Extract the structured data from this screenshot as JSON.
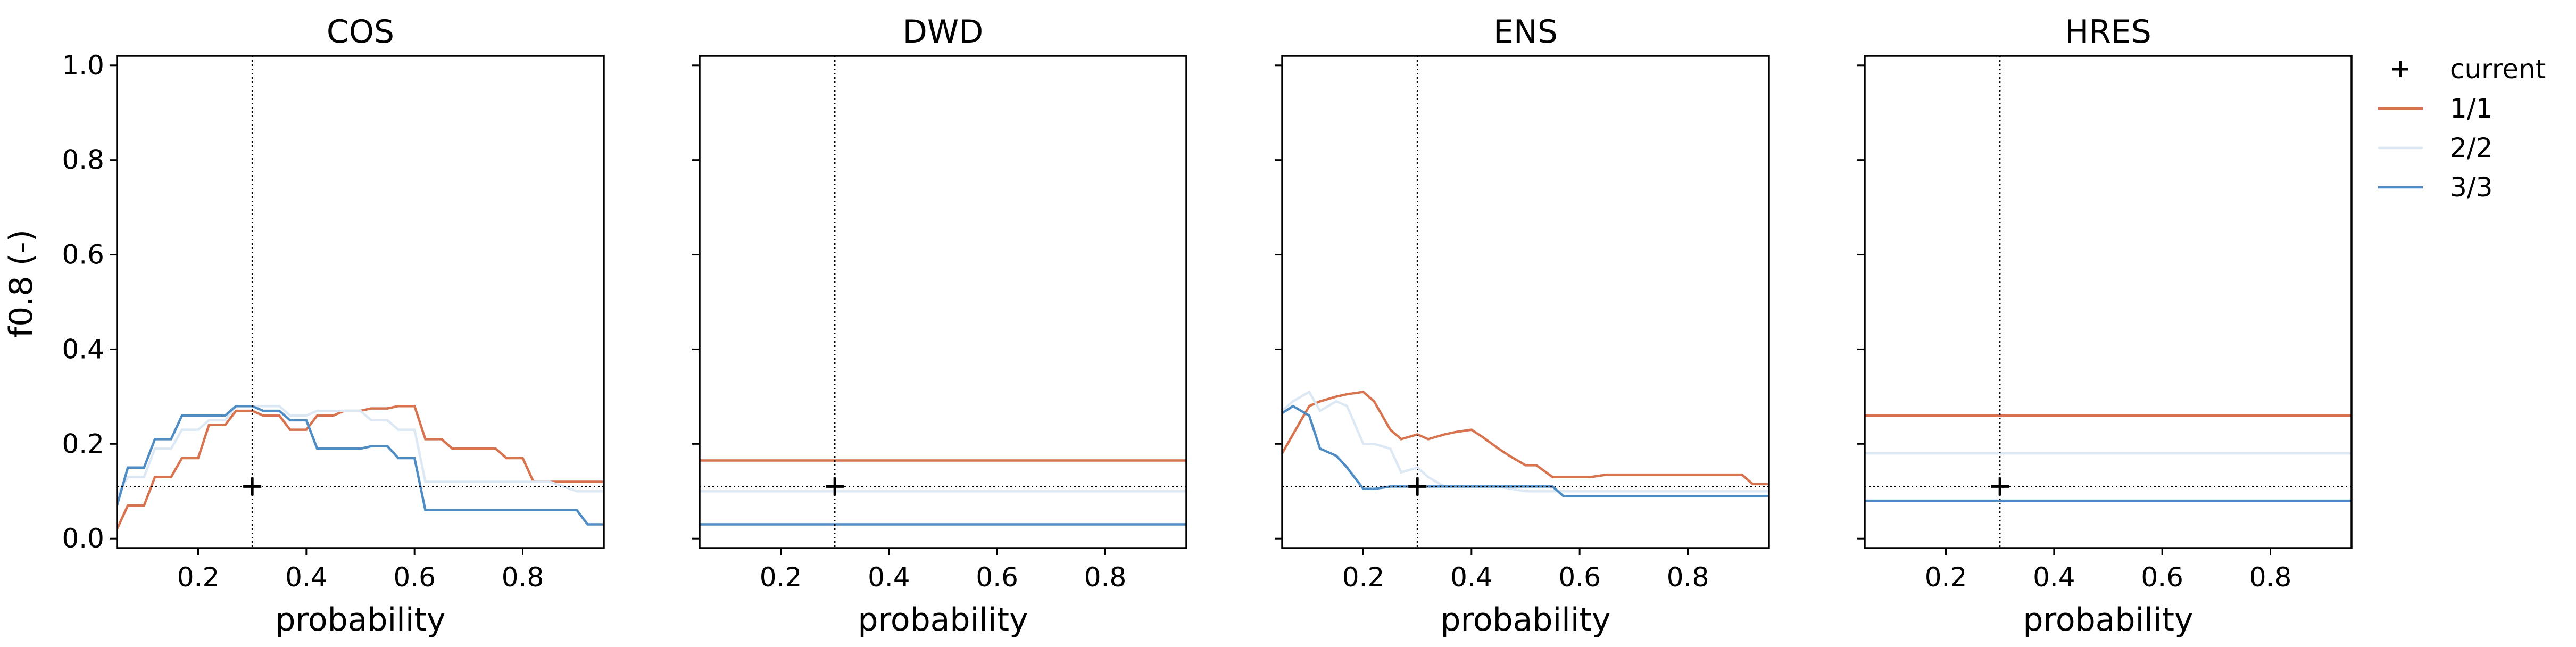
{
  "figure": {
    "ylabel": "f0.8 (-)"
  },
  "legend": {
    "placement": "outside-right",
    "entries": [
      {
        "label": "current",
        "marker": "plus",
        "color": "#000000"
      },
      {
        "label": "1/1",
        "color": "#d8734f"
      },
      {
        "label": "2/2",
        "color": "#dce9f4"
      },
      {
        "label": "3/3",
        "color": "#4f8cc4"
      }
    ]
  },
  "chart_data": [
    {
      "type": "line",
      "title": "COS",
      "xlabel": "probability",
      "ylabel": "f0.8 (-)",
      "xlim": [
        0.05,
        0.95
      ],
      "ylim": [
        -0.02,
        1.02
      ],
      "xticks": [
        "0.2",
        "0.4",
        "0.6",
        "0.8"
      ],
      "yticks": [
        "0.0",
        "0.2",
        "0.4",
        "0.6",
        "0.8",
        "1.0"
      ],
      "current": {
        "x": 0.3,
        "y": 0.11
      },
      "series": [
        {
          "name": "1/1",
          "color": "#d8734f",
          "x": [
            0.05,
            0.07,
            0.1,
            0.12,
            0.15,
            0.17,
            0.2,
            0.22,
            0.25,
            0.27,
            0.3,
            0.32,
            0.35,
            0.37,
            0.4,
            0.42,
            0.45,
            0.47,
            0.5,
            0.52,
            0.55,
            0.57,
            0.6,
            0.62,
            0.65,
            0.67,
            0.7,
            0.72,
            0.75,
            0.77,
            0.8,
            0.82,
            0.85,
            0.87,
            0.9,
            0.92,
            0.95
          ],
          "y": [
            0.02,
            0.07,
            0.07,
            0.13,
            0.13,
            0.17,
            0.17,
            0.24,
            0.24,
            0.27,
            0.27,
            0.26,
            0.26,
            0.23,
            0.23,
            0.26,
            0.26,
            0.27,
            0.27,
            0.275,
            0.275,
            0.28,
            0.28,
            0.21,
            0.21,
            0.19,
            0.19,
            0.19,
            0.19,
            0.17,
            0.17,
            0.12,
            0.12,
            0.12,
            0.12,
            0.12,
            0.12
          ]
        },
        {
          "name": "2/2",
          "color": "#dce9f4",
          "x": [
            0.05,
            0.07,
            0.1,
            0.12,
            0.15,
            0.17,
            0.2,
            0.22,
            0.25,
            0.27,
            0.3,
            0.32,
            0.35,
            0.37,
            0.4,
            0.42,
            0.45,
            0.47,
            0.5,
            0.52,
            0.55,
            0.57,
            0.6,
            0.62,
            0.65,
            0.7,
            0.75,
            0.8,
            0.85,
            0.9,
            0.93,
            0.95
          ],
          "y": [
            0.09,
            0.13,
            0.13,
            0.19,
            0.19,
            0.23,
            0.23,
            0.25,
            0.25,
            0.28,
            0.28,
            0.28,
            0.28,
            0.26,
            0.26,
            0.27,
            0.27,
            0.27,
            0.27,
            0.25,
            0.25,
            0.23,
            0.23,
            0.12,
            0.12,
            0.12,
            0.12,
            0.12,
            0.12,
            0.1,
            0.1,
            0.1
          ]
        },
        {
          "name": "3/3",
          "color": "#4f8cc4",
          "x": [
            0.05,
            0.07,
            0.1,
            0.12,
            0.15,
            0.17,
            0.2,
            0.22,
            0.25,
            0.27,
            0.3,
            0.32,
            0.35,
            0.37,
            0.4,
            0.42,
            0.45,
            0.47,
            0.5,
            0.52,
            0.55,
            0.57,
            0.6,
            0.62,
            0.65,
            0.7,
            0.75,
            0.8,
            0.85,
            0.9,
            0.92,
            0.95
          ],
          "y": [
            0.07,
            0.15,
            0.15,
            0.21,
            0.21,
            0.26,
            0.26,
            0.26,
            0.26,
            0.28,
            0.28,
            0.27,
            0.27,
            0.25,
            0.25,
            0.19,
            0.19,
            0.19,
            0.19,
            0.195,
            0.195,
            0.17,
            0.17,
            0.06,
            0.06,
            0.06,
            0.06,
            0.06,
            0.06,
            0.06,
            0.03,
            0.03
          ]
        }
      ]
    },
    {
      "type": "line",
      "title": "DWD",
      "xlabel": "probability",
      "xlim": [
        0.05,
        0.95
      ],
      "ylim": [
        -0.02,
        1.02
      ],
      "xticks": [
        "0.2",
        "0.4",
        "0.6",
        "0.8"
      ],
      "current": {
        "x": 0.3,
        "y": 0.11
      },
      "series": [
        {
          "name": "1/1",
          "color": "#d8734f",
          "x": [
            0.05,
            0.95
          ],
          "y": [
            0.165,
            0.165
          ]
        },
        {
          "name": "2/2",
          "color": "#dce9f4",
          "x": [
            0.05,
            0.95
          ],
          "y": [
            0.1,
            0.1
          ]
        },
        {
          "name": "3/3",
          "color": "#4f8cc4",
          "x": [
            0.05,
            0.95
          ],
          "y": [
            0.03,
            0.03
          ]
        }
      ]
    },
    {
      "type": "line",
      "title": "ENS",
      "xlabel": "probability",
      "xlim": [
        0.05,
        0.95
      ],
      "ylim": [
        -0.02,
        1.02
      ],
      "xticks": [
        "0.2",
        "0.4",
        "0.6",
        "0.8"
      ],
      "current": {
        "x": 0.3,
        "y": 0.11
      },
      "series": [
        {
          "name": "1/1",
          "color": "#d8734f",
          "x": [
            0.05,
            0.07,
            0.1,
            0.12,
            0.15,
            0.17,
            0.2,
            0.22,
            0.25,
            0.27,
            0.3,
            0.32,
            0.35,
            0.37,
            0.4,
            0.42,
            0.45,
            0.47,
            0.5,
            0.52,
            0.55,
            0.57,
            0.6,
            0.62,
            0.65,
            0.67,
            0.7,
            0.75,
            0.8,
            0.85,
            0.9,
            0.92,
            0.95
          ],
          "y": [
            0.18,
            0.22,
            0.28,
            0.29,
            0.3,
            0.305,
            0.31,
            0.29,
            0.23,
            0.21,
            0.22,
            0.21,
            0.22,
            0.225,
            0.23,
            0.215,
            0.19,
            0.175,
            0.155,
            0.155,
            0.13,
            0.13,
            0.13,
            0.13,
            0.135,
            0.135,
            0.135,
            0.135,
            0.135,
            0.135,
            0.135,
            0.115,
            0.115
          ]
        },
        {
          "name": "2/2",
          "color": "#dce9f4",
          "x": [
            0.05,
            0.07,
            0.1,
            0.12,
            0.15,
            0.17,
            0.2,
            0.22,
            0.25,
            0.27,
            0.3,
            0.32,
            0.35,
            0.4,
            0.45,
            0.5,
            0.55,
            0.6,
            0.7,
            0.8,
            0.9,
            0.95
          ],
          "y": [
            0.27,
            0.29,
            0.31,
            0.27,
            0.29,
            0.28,
            0.2,
            0.2,
            0.19,
            0.14,
            0.15,
            0.13,
            0.11,
            0.11,
            0.11,
            0.1,
            0.1,
            0.1,
            0.1,
            0.1,
            0.1,
            0.1
          ]
        },
        {
          "name": "3/3",
          "color": "#4f8cc4",
          "x": [
            0.05,
            0.07,
            0.1,
            0.12,
            0.15,
            0.17,
            0.2,
            0.22,
            0.25,
            0.27,
            0.3,
            0.32,
            0.35,
            0.4,
            0.45,
            0.5,
            0.55,
            0.57,
            0.6,
            0.65,
            0.7,
            0.8,
            0.9,
            0.95
          ],
          "y": [
            0.265,
            0.28,
            0.26,
            0.19,
            0.175,
            0.15,
            0.105,
            0.105,
            0.11,
            0.11,
            0.11,
            0.11,
            0.11,
            0.11,
            0.11,
            0.11,
            0.11,
            0.09,
            0.09,
            0.09,
            0.09,
            0.09,
            0.09,
            0.09
          ]
        }
      ]
    },
    {
      "type": "line",
      "title": "HRES",
      "xlabel": "probability",
      "xlim": [
        0.05,
        0.95
      ],
      "ylim": [
        -0.02,
        1.02
      ],
      "xticks": [
        "0.2",
        "0.4",
        "0.6",
        "0.8"
      ],
      "current": {
        "x": 0.3,
        "y": 0.11
      },
      "series": [
        {
          "name": "1/1",
          "color": "#d8734f",
          "x": [
            0.05,
            0.95
          ],
          "y": [
            0.26,
            0.26
          ]
        },
        {
          "name": "2/2",
          "color": "#dce9f4",
          "x": [
            0.05,
            0.95
          ],
          "y": [
            0.18,
            0.18
          ]
        },
        {
          "name": "3/3",
          "color": "#4f8cc4",
          "x": [
            0.05,
            0.95
          ],
          "y": [
            0.08,
            0.08
          ]
        }
      ]
    }
  ]
}
